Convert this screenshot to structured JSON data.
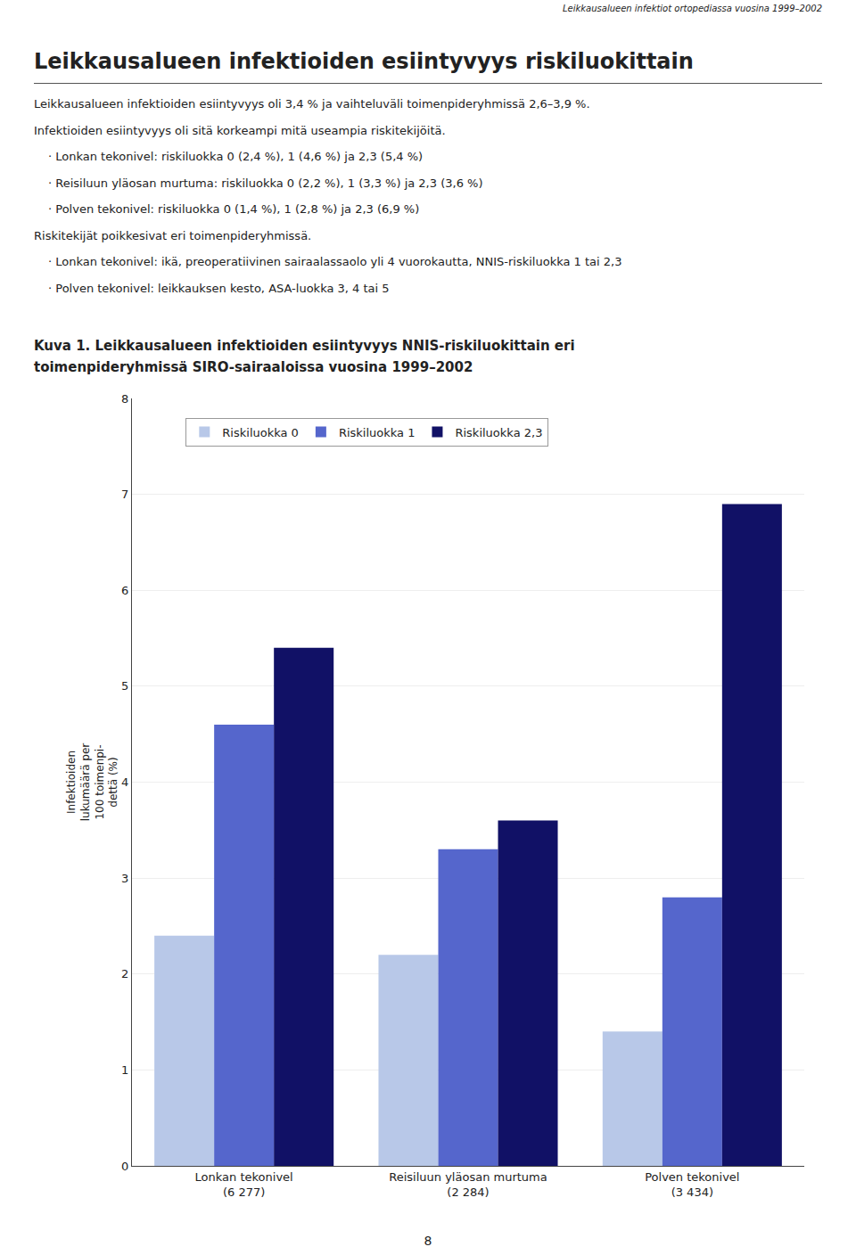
{
  "chart_data": {
    "type": "bar",
    "title": "Leikkausalueen infektioiden esiintyvyys riskiluokittain",
    "subtitle": "Kuva 1. Leikkausalueen infektioiden esiintyvyys NNIS-riskiluokittain eri\ntoimenpideryhmissä SIRO-sairaaloissa vuosina 1999–2002",
    "annotations": [
      "Leikkausalueen infektiot ortopediassa vuosina 1999–2002",
      "Leikkausalueen infektioiden esiintyvyys oli 3,4 % ja vaihteluväli toimenpideryhmissä 2,6–3,9 %.",
      "Infektioiden esiintyvyys oli sitä korkeampi mitä useampia riskitekijöitä.",
      "· Lonkan tekonivel: riskiluokka 0 (2,4 %), 1 (4,6 %) ja 2,3 (5,4 %)",
      "· Reisiluun yläosan murtuma: riskiluokka 0 (2,2 %), 1 (3,3 %) ja 2,3 (3,6 %)",
      "· Polven tekonivel: riskiluokka 0 (1,4 %), 1 (2,8 %) ja 2,3 (6,9 %)",
      "Riskitekijät poikkesivat eri toimenpideryhmissä.",
      "· Lonkan tekonivel: ikä, preoperatiivinen sairaalassaolo yli 4 vuorokautta, NNIS-riskiluokka 1 tai 2,3",
      "· Polven tekonivel: leikkauksen kesto, ASA-luokka 3, 4 tai 5",
      "8"
    ],
    "categories": [
      "Lonkan tekonivel\n(6 277)",
      "Reisiluun yläosan murtuma\n(2 284)",
      "Polven tekonivel\n(3 434)"
    ],
    "series": [
      {
        "name": "Riskiluokka 0",
        "color": "#b8c8e8",
        "values": [
          2.4,
          2.2,
          1.4
        ]
      },
      {
        "name": "Riskiluokka 1",
        "color": "#5566cc",
        "values": [
          4.6,
          3.3,
          2.8
        ]
      },
      {
        "name": "Riskiluokka 2,3",
        "color": "#111166",
        "values": [
          5.4,
          3.6,
          6.9
        ]
      }
    ],
    "ylabel": "Infektioiden\nlukumäärä per\n100 toimenpi-\ndettä (%)",
    "ylim": [
      0,
      8
    ],
    "yticks": [
      0,
      1,
      2,
      3,
      4,
      5,
      6,
      7,
      8
    ],
    "grid": true,
    "legend": "upper left"
  }
}
